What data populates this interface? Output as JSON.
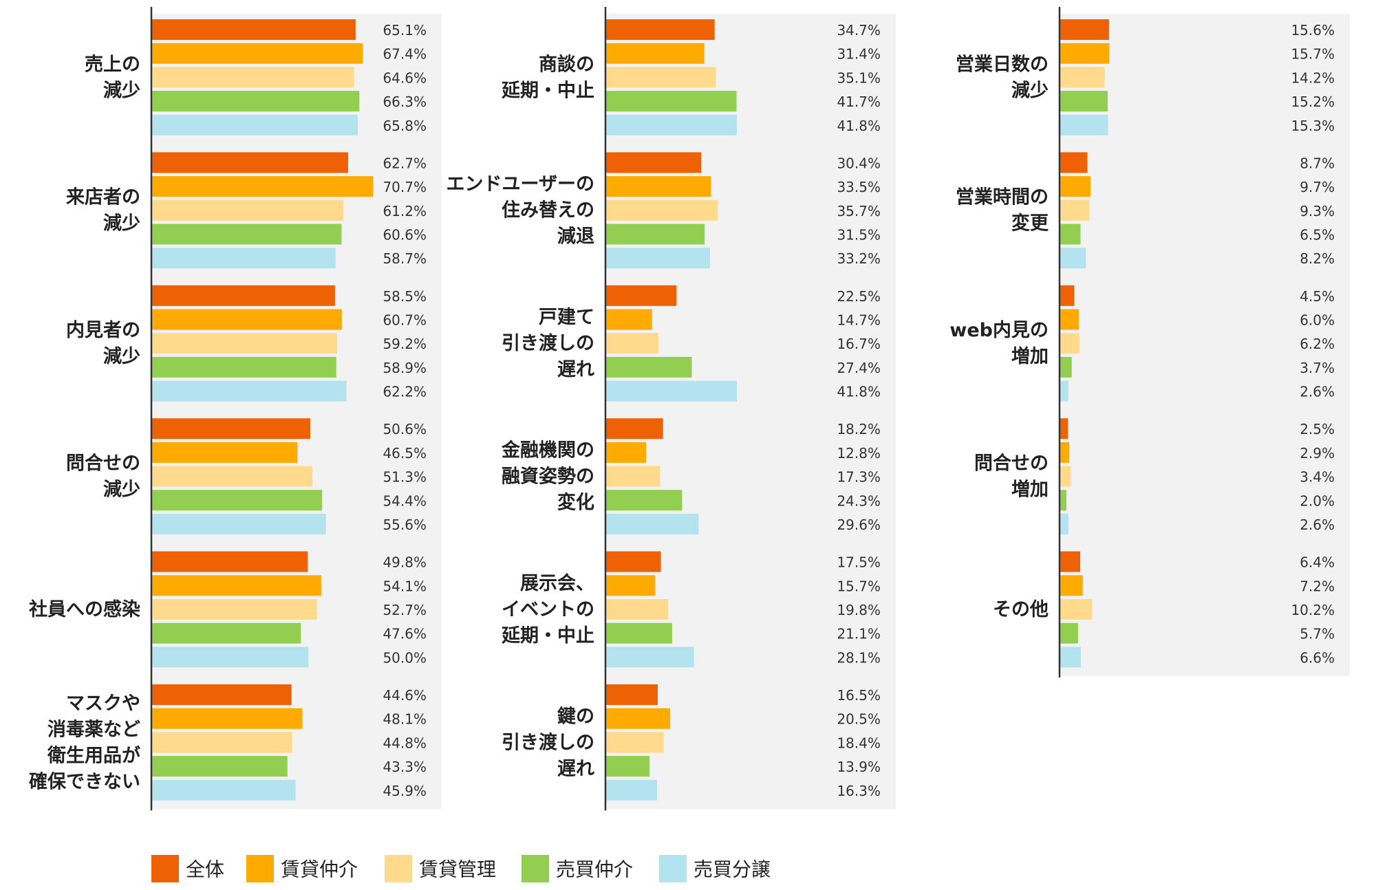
{
  "colors": {
    "series": [
      "#EE6104",
      "#FFAA00",
      "#FFD98C",
      "#92CF50",
      "#B3E3EE"
    ],
    "panel_bg": "#F2F2F2",
    "axis": "#333333"
  },
  "legend": [
    "全体",
    "賃貸仲介",
    "賃貸管理",
    "売買仲介",
    "売買分譲"
  ],
  "chart_data": [
    {
      "type": "bar",
      "orientation": "horizontal",
      "xlim": [
        0,
        100
      ],
      "series_names": [
        "全体",
        "賃貸仲介",
        "賃貸管理",
        "売買仲介",
        "売買分譲"
      ],
      "groups": [
        {
          "label": [
            "売上の",
            "減少"
          ],
          "values": [
            65.1,
            67.4,
            64.6,
            66.3,
            65.8
          ],
          "labels": [
            "65.1%",
            "67.4%",
            "64.6%",
            "66.3%",
            "65.8%"
          ]
        },
        {
          "label": [
            "来店者の",
            "減少"
          ],
          "values": [
            62.7,
            70.7,
            61.2,
            60.6,
            58.7
          ],
          "labels": [
            "62.7%",
            "70.7%",
            "61.2%",
            "60.6%",
            "58.7%"
          ]
        },
        {
          "label": [
            "内見者の",
            "減少"
          ],
          "values": [
            58.5,
            60.7,
            59.2,
            58.9,
            62.2
          ],
          "labels": [
            "58.5%",
            "60.7%",
            "59.2%",
            "58.9%",
            "62.2%"
          ]
        },
        {
          "label": [
            "問合せの",
            "減少"
          ],
          "values": [
            50.6,
            46.5,
            51.3,
            54.4,
            55.6
          ],
          "labels": [
            "50.6%",
            "46.5%",
            "51.3%",
            "54.4%",
            "55.6%"
          ]
        },
        {
          "label": [
            "社員への感染"
          ],
          "values": [
            49.8,
            54.1,
            52.7,
            47.6,
            50.0
          ],
          "labels": [
            "49.8%",
            "54.1%",
            "52.7%",
            "47.6%",
            "50.0%"
          ]
        },
        {
          "label": [
            "マスクや",
            "消毒薬など",
            "衛生用品が",
            "確保できない"
          ],
          "values": [
            44.6,
            48.1,
            44.8,
            43.3,
            45.9
          ],
          "labels": [
            "44.6%",
            "48.1%",
            "44.8%",
            "43.3%",
            "45.9%"
          ]
        }
      ]
    },
    {
      "type": "bar",
      "orientation": "horizontal",
      "xlim": [
        0,
        100
      ],
      "series_names": [
        "全体",
        "賃貸仲介",
        "賃貸管理",
        "売買仲介",
        "売買分譲"
      ],
      "groups": [
        {
          "label": [
            "商談の",
            "延期・中止"
          ],
          "values": [
            34.7,
            31.4,
            35.1,
            41.7,
            41.8
          ],
          "labels": [
            "34.7%",
            "31.4%",
            "35.1%",
            "41.7%",
            "41.8%"
          ]
        },
        {
          "label": [
            "エンドユーザーの",
            "住み替えの",
            "減退"
          ],
          "values": [
            30.4,
            33.5,
            35.7,
            31.5,
            33.2
          ],
          "labels": [
            "30.4%",
            "33.5%",
            "35.7%",
            "31.5%",
            "33.2%"
          ]
        },
        {
          "label": [
            "戸建て",
            "引き渡しの",
            "遅れ"
          ],
          "values": [
            22.5,
            14.7,
            16.7,
            27.4,
            41.8
          ],
          "labels": [
            "22.5%",
            "14.7%",
            "16.7%",
            "27.4%",
            "41.8%"
          ]
        },
        {
          "label": [
            "金融機関の",
            "融資姿勢の",
            "変化"
          ],
          "values": [
            18.2,
            12.8,
            17.3,
            24.3,
            29.6
          ],
          "labels": [
            "18.2%",
            "12.8%",
            "17.3%",
            "24.3%",
            "29.6%"
          ]
        },
        {
          "label": [
            "展示会、",
            "イベントの",
            "延期・中止"
          ],
          "values": [
            17.5,
            15.7,
            19.8,
            21.1,
            28.1
          ],
          "labels": [
            "17.5%",
            "15.7%",
            "19.8%",
            "21.1%",
            "28.1%"
          ]
        },
        {
          "label": [
            "鍵の",
            "引き渡しの",
            "遅れ"
          ],
          "values": [
            16.5,
            20.5,
            18.4,
            13.9,
            16.3
          ],
          "labels": [
            "16.5%",
            "20.5%",
            "18.4%",
            "13.9%",
            "16.3%"
          ]
        }
      ]
    },
    {
      "type": "bar",
      "orientation": "horizontal",
      "xlim": [
        0,
        100
      ],
      "series_names": [
        "全体",
        "賃貸仲介",
        "賃貸管理",
        "売買仲介",
        "売買分譲"
      ],
      "groups": [
        {
          "label": [
            "営業日数の",
            "減少"
          ],
          "values": [
            15.6,
            15.7,
            14.2,
            15.2,
            15.3
          ],
          "labels": [
            "15.6%",
            "15.7%",
            "14.2%",
            "15.2%",
            "15.3%"
          ]
        },
        {
          "label": [
            "営業時間の",
            "変更"
          ],
          "values": [
            8.7,
            9.7,
            9.3,
            6.5,
            8.2
          ],
          "labels": [
            "8.7%",
            "9.7%",
            "9.3%",
            "6.5%",
            "8.2%"
          ]
        },
        {
          "label": [
            "web内見の",
            "増加"
          ],
          "values": [
            4.5,
            6.0,
            6.2,
            3.7,
            2.6
          ],
          "labels": [
            "4.5%",
            "6.0%",
            "6.2%",
            "3.7%",
            "2.6%"
          ]
        },
        {
          "label": [
            "問合せの",
            "増加"
          ],
          "values": [
            2.5,
            2.9,
            3.4,
            2.0,
            2.6
          ],
          "labels": [
            "2.5%",
            "2.9%",
            "3.4%",
            "2.0%",
            "2.6%"
          ]
        },
        {
          "label": [
            "その他"
          ],
          "values": [
            6.4,
            7.2,
            10.2,
            5.7,
            6.6
          ],
          "labels": [
            "6.4%",
            "7.2%",
            "10.2%",
            "5.7%",
            "6.6%"
          ]
        }
      ]
    }
  ]
}
